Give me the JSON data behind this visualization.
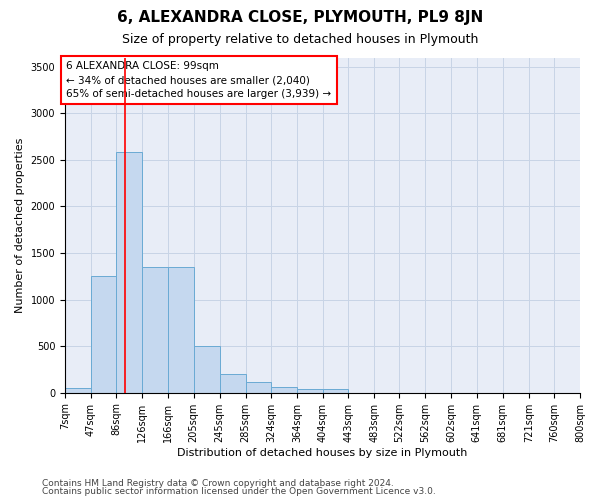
{
  "title": "6, ALEXANDRA CLOSE, PLYMOUTH, PL9 8JN",
  "subtitle": "Size of property relative to detached houses in Plymouth",
  "xlabel": "Distribution of detached houses by size in Plymouth",
  "ylabel": "Number of detached properties",
  "bin_labels": [
    "7sqm",
    "47sqm",
    "86sqm",
    "126sqm",
    "166sqm",
    "205sqm",
    "245sqm",
    "285sqm",
    "324sqm",
    "364sqm",
    "404sqm",
    "443sqm",
    "483sqm",
    "522sqm",
    "562sqm",
    "602sqm",
    "641sqm",
    "681sqm",
    "721sqm",
    "760sqm",
    "800sqm"
  ],
  "bin_edges": [
    7,
    47,
    86,
    126,
    166,
    205,
    245,
    285,
    324,
    364,
    404,
    443,
    483,
    522,
    562,
    602,
    641,
    681,
    721,
    760,
    800
  ],
  "bar_heights": [
    50,
    1250,
    2580,
    1350,
    1350,
    500,
    200,
    120,
    60,
    40,
    40,
    0,
    0,
    0,
    0,
    0,
    0,
    0,
    0,
    0
  ],
  "bar_color": "#c5d8ef",
  "bar_edge_color": "#6aaad4",
  "grid_color": "#c8d4e6",
  "bg_color": "#e8edf7",
  "red_line_x": 99,
  "annotation_text": "6 ALEXANDRA CLOSE: 99sqm\n← 34% of detached houses are smaller (2,040)\n65% of semi-detached houses are larger (3,939) →",
  "ylim": [
    0,
    3600
  ],
  "yticks": [
    0,
    500,
    1000,
    1500,
    2000,
    2500,
    3000,
    3500
  ],
  "footer_line1": "Contains HM Land Registry data © Crown copyright and database right 2024.",
  "footer_line2": "Contains public sector information licensed under the Open Government Licence v3.0.",
  "title_fontsize": 11,
  "subtitle_fontsize": 9,
  "axis_label_fontsize": 8,
  "tick_fontsize": 7,
  "annotation_fontsize": 7.5,
  "footer_fontsize": 6.5
}
